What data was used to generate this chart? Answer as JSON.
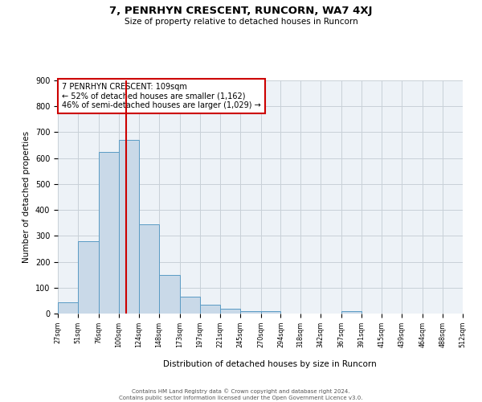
{
  "title": "7, PENRHYN CRESCENT, RUNCORN, WA7 4XJ",
  "subtitle": "Size of property relative to detached houses in Runcorn",
  "xlabel": "Distribution of detached houses by size in Runcorn",
  "ylabel": "Number of detached properties",
  "bar_edges": [
    27,
    51,
    76,
    100,
    124,
    148,
    173,
    197,
    221,
    245,
    270,
    294,
    318,
    342,
    367,
    391,
    415,
    439,
    464,
    488,
    512
  ],
  "bar_heights": [
    43,
    280,
    625,
    670,
    345,
    148,
    65,
    33,
    20,
    10,
    8,
    0,
    0,
    0,
    10,
    0,
    0,
    0,
    0,
    0
  ],
  "bar_color": "#c9d9e8",
  "bar_edge_color": "#5a9bc4",
  "property_size": 109,
  "vline_color": "#cc0000",
  "annotation_text": "7 PENRHYN CRESCENT: 109sqm\n← 52% of detached houses are smaller (1,162)\n46% of semi-detached houses are larger (1,029) →",
  "annotation_box_edge_color": "#cc0000",
  "ylim": [
    0,
    900
  ],
  "yticks": [
    0,
    100,
    200,
    300,
    400,
    500,
    600,
    700,
    800,
    900
  ],
  "grid_color": "#c8d0d8",
  "bg_color": "#edf2f7",
  "footer_line1": "Contains HM Land Registry data © Crown copyright and database right 2024.",
  "footer_line2": "Contains public sector information licensed under the Open Government Licence v3.0."
}
